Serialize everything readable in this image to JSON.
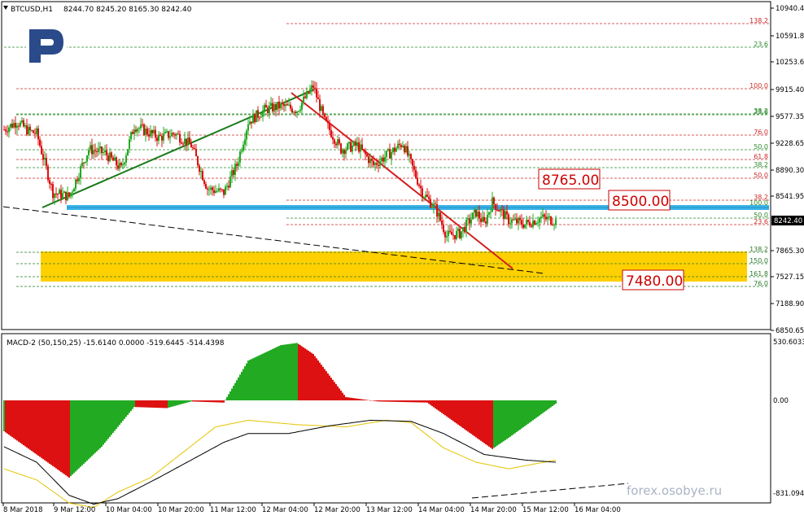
{
  "header": {
    "symbol": "BTCUSD,H1",
    "ohlc": "8244.70 8245.20 8165.30 8242.40"
  },
  "indicator": {
    "label": "MACD-2 (50,150,25) -15.6140 0.0000 -519.6445 -514.4398"
  },
  "watermark": "forex.osobye.ru",
  "price_axis": [
    "10940.40",
    "10591.80",
    "10253.65",
    "9915.40",
    "9577.35",
    "9228.65",
    "8890.30",
    "8541.95",
    "8242.40",
    "7865.30",
    "7527.15",
    "7188.90",
    "6850.65"
  ],
  "macd_axis": [
    "530.6033",
    "0.00",
    "-831.094"
  ],
  "time_axis": [
    "8 Mar 2018",
    "9 Mar 12:00",
    "10 Mar 04:00",
    "10 Mar 20:00",
    "11 Mar 12:00",
    "12 Mar 04:00",
    "12 Mar 20:00",
    "13 Mar 12:00",
    "14 Mar 04:00",
    "14 Mar 20:00",
    "15 Mar 12:00",
    "16 Mar 04:00"
  ],
  "levels": {
    "box_8765": "8765.00",
    "box_8500": "8500.00",
    "box_7480": "7480.00"
  },
  "fib_upper": [
    "138.2",
    "23.6",
    "100.0",
    "38.2",
    "23.6",
    "76.0",
    "50.0",
    "61.8",
    "38.2",
    "50.0",
    "38.2",
    "100.0",
    "50.0",
    "23.6"
  ],
  "fib_lower": [
    "138.2",
    "150.0",
    "161.8",
    "76.0"
  ],
  "colors": {
    "bull": "#22aa22",
    "bear": "#dd1111",
    "trend_up": "#1a7a1a",
    "trend_down": "#d42020",
    "level_8500": "#3ab4e8",
    "support_zone": "#ffd000",
    "signal": "#e6c400"
  },
  "chart_data": {
    "type": "candlestick",
    "title": "BTCUSD,H1",
    "ylim": [
      6700,
      11000
    ],
    "last_price": 8242.4,
    "key_levels": [
      8765.0,
      8500.0,
      7480.0
    ],
    "support_zone": [
      7430,
      7800
    ],
    "close_path": [
      [
        0,
        9400
      ],
      [
        8,
        9500
      ],
      [
        15,
        9380
      ],
      [
        20,
        9350
      ],
      [
        30,
        8600
      ],
      [
        40,
        8550
      ],
      [
        52,
        9150
      ],
      [
        62,
        9100
      ],
      [
        72,
        8900
      ],
      [
        80,
        9450
      ],
      [
        95,
        9300
      ],
      [
        105,
        9350
      ],
      [
        115,
        9200
      ],
      [
        125,
        8650
      ],
      [
        135,
        8600
      ],
      [
        143,
        8950
      ],
      [
        150,
        9500
      ],
      [
        160,
        9650
      ],
      [
        170,
        9700
      ],
      [
        180,
        9650
      ],
      [
        190,
        9950
      ],
      [
        197,
        9500
      ],
      [
        207,
        9150
      ],
      [
        217,
        9200
      ],
      [
        227,
        8950
      ],
      [
        237,
        9100
      ],
      [
        245,
        9230
      ],
      [
        257,
        8600
      ],
      [
        265,
        8400
      ],
      [
        272,
        8050
      ],
      [
        280,
        8080
      ],
      [
        290,
        8350
      ],
      [
        295,
        8200
      ],
      [
        300,
        8480
      ],
      [
        310,
        8250
      ],
      [
        320,
        8200
      ],
      [
        330,
        8280
      ],
      [
        339,
        8242
      ]
    ],
    "macd_histogram_path": [
      [
        0,
        -280
      ],
      [
        40,
        -700
      ],
      [
        60,
        -420
      ],
      [
        80,
        -60
      ],
      [
        100,
        -70
      ],
      [
        115,
        -10
      ],
      [
        135,
        -20
      ],
      [
        150,
        360
      ],
      [
        170,
        500
      ],
      [
        180,
        520
      ],
      [
        190,
        420
      ],
      [
        210,
        30
      ],
      [
        230,
        -10
      ],
      [
        260,
        -20
      ],
      [
        280,
        -230
      ],
      [
        300,
        -440
      ],
      [
        310,
        -340
      ],
      [
        325,
        -180
      ],
      [
        339,
        -30
      ]
    ],
    "macd_signal_path": [
      [
        0,
        -620
      ],
      [
        20,
        -720
      ],
      [
        40,
        -930
      ],
      [
        55,
        -970
      ],
      [
        70,
        -830
      ],
      [
        90,
        -700
      ],
      [
        110,
        -470
      ],
      [
        130,
        -240
      ],
      [
        150,
        -180
      ],
      [
        180,
        -220
      ],
      [
        210,
        -240
      ],
      [
        235,
        -180
      ],
      [
        250,
        -200
      ],
      [
        270,
        -430
      ],
      [
        290,
        -560
      ],
      [
        310,
        -620
      ],
      [
        339,
        -540
      ]
    ],
    "macd_main_path": [
      [
        0,
        -420
      ],
      [
        20,
        -560
      ],
      [
        40,
        -860
      ],
      [
        55,
        -940
      ],
      [
        70,
        -890
      ],
      [
        95,
        -700
      ],
      [
        115,
        -540
      ],
      [
        135,
        -380
      ],
      [
        150,
        -300
      ],
      [
        175,
        -300
      ],
      [
        200,
        -230
      ],
      [
        225,
        -180
      ],
      [
        250,
        -190
      ],
      [
        270,
        -300
      ],
      [
        295,
        -490
      ],
      [
        320,
        -540
      ],
      [
        339,
        -560
      ]
    ]
  }
}
